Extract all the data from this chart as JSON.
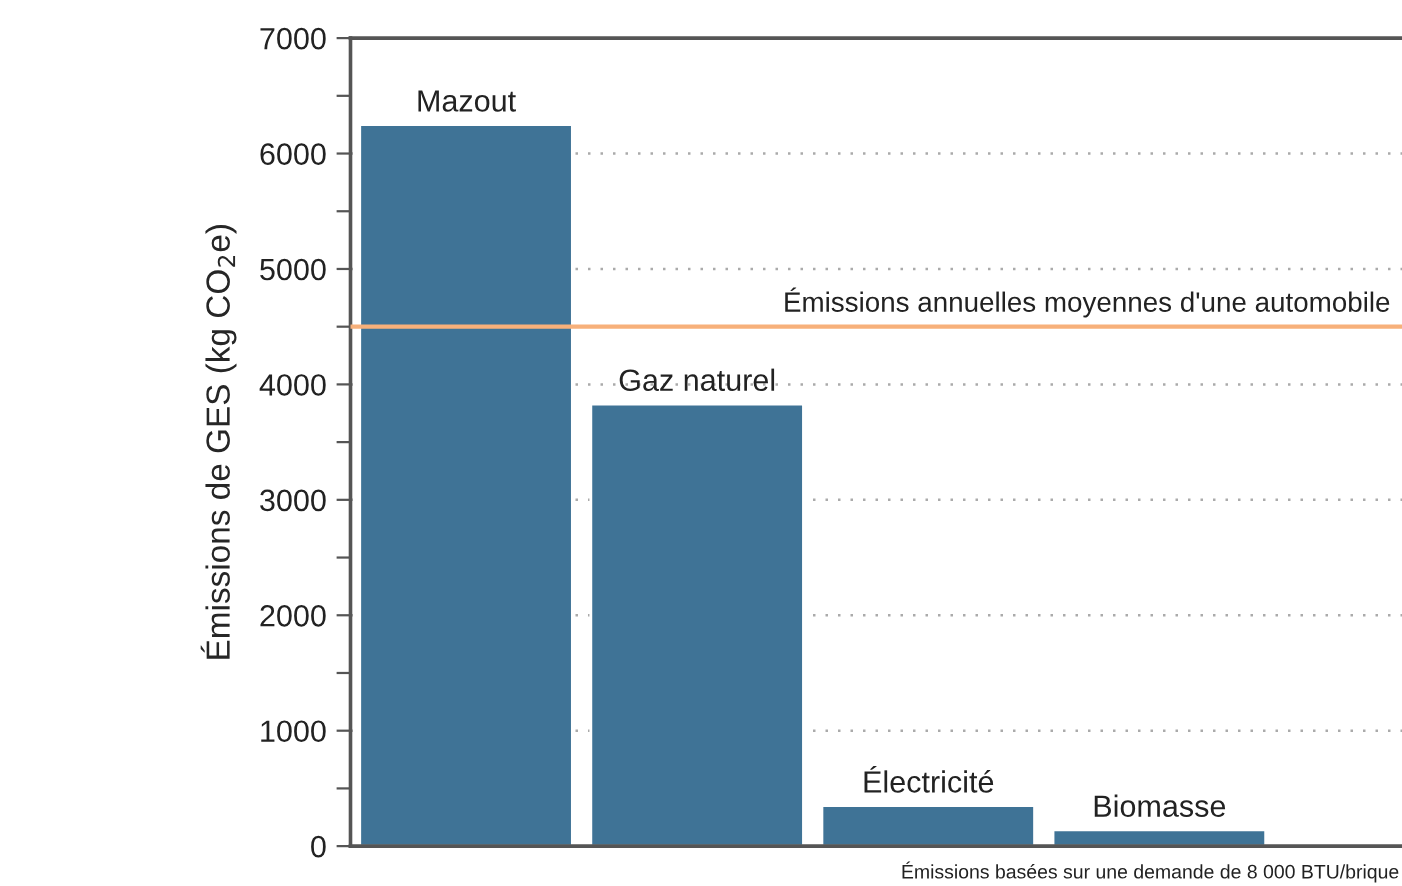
{
  "chart_data": {
    "type": "bar",
    "categories": [
      "Mazout",
      "Gaz naturel",
      "Électricité",
      "Biomasse"
    ],
    "values": [
      6250,
      3830,
      350,
      140
    ],
    "color": "#3f7396",
    "ylabel": "Émissions de GES (kg CO$_{2}$e)",
    "ylim": [
      0,
      7000
    ],
    "yticks": [
      0,
      {
        "value": 500,
        "label": null
      },
      1000,
      {
        "value": 1500,
        "label": null
      },
      2000,
      {
        "value": 2500,
        "label": null
      },
      3000,
      {
        "value": 3500,
        "label": null
      },
      4000,
      {
        "value": 4500,
        "label": null
      },
      5000,
      {
        "value": 5500,
        "label": null
      },
      6000,
      {
        "value": 6500,
        "label": null
      },
      7000
    ],
    "grid": "y",
    "tick_labels": "y",
    "ref_lines": [
      {
        "axis": "y",
        "value": 4500,
        "label": "Émissions annuelles moyennes d'une automobile",
        "color": "#f7b07a",
        "line_style": "solid"
      }
    ],
    "annotations": [
      "Émissions basées sur une demande de 8 000 BTU/brique"
    ]
  }
}
